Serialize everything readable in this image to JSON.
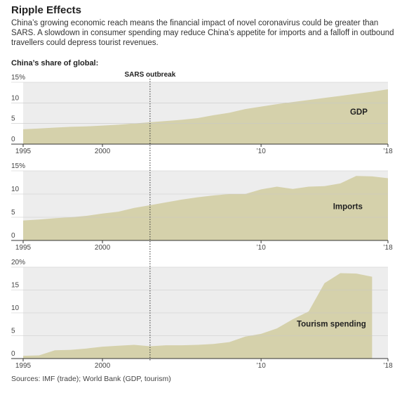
{
  "title": "Ripple Effects",
  "subtitle": "China’s growing economic reach means the financial impact of novel coronavirus could be greater than SARS. A slowdown in consumer spending may reduce China’s appetite for imports and a falloff in outbound travellers could depress tourist revenues.",
  "section_label": "China’s share of global:",
  "source": "Sources: IMF (trade); World Bank (GDP, tourism)",
  "chart_data": [
    {
      "type": "area",
      "annotation": {
        "text": "SARS outbreak",
        "x": 2003
      },
      "x": [
        1995,
        1996,
        1997,
        1998,
        1999,
        2000,
        2001,
        2002,
        2003,
        2004,
        2005,
        2006,
        2007,
        2008,
        2009,
        2010,
        2011,
        2012,
        2013,
        2014,
        2015,
        2016,
        2017,
        2018
      ],
      "series": [
        {
          "name": "GDP",
          "color": "#d5d1ab",
          "values": [
            3.6,
            3.8,
            4.0,
            4.2,
            4.3,
            4.5,
            4.7,
            5.0,
            5.3,
            5.6,
            5.9,
            6.3,
            7.0,
            7.6,
            8.5,
            9.1,
            9.7,
            10.2,
            10.7,
            11.2,
            11.7,
            12.2,
            12.7,
            13.3
          ]
        }
      ],
      "xlim": [
        1995,
        2018
      ],
      "xticks": [
        1995,
        2000,
        {
          "value": 2010,
          "label": "’10"
        },
        {
          "value": 2018,
          "label": "’18"
        }
      ],
      "ylim": [
        0,
        15
      ],
      "yticks": [
        0,
        5,
        10,
        {
          "value": 15,
          "label": "15%"
        }
      ],
      "grid": true
    },
    {
      "type": "area",
      "x": [
        1995,
        1996,
        1997,
        1998,
        1999,
        2000,
        2001,
        2002,
        2003,
        2004,
        2005,
        2006,
        2007,
        2008,
        2009,
        2010,
        2011,
        2012,
        2013,
        2014,
        2015,
        2016,
        2017,
        2018
      ],
      "series": [
        {
          "name": "Imports",
          "color": "#d5d1ab",
          "values": [
            4.3,
            4.5,
            4.8,
            5.0,
            5.3,
            5.8,
            6.2,
            7.0,
            7.6,
            8.2,
            8.8,
            9.3,
            9.7,
            10.0,
            10.0,
            11.0,
            11.6,
            11.1,
            11.6,
            11.7,
            12.3,
            13.9,
            13.8,
            13.4
          ]
        }
      ],
      "xlim": [
        1995,
        2018
      ],
      "xticks": [
        1995,
        2000,
        {
          "value": 2010,
          "label": "’10"
        },
        {
          "value": 2018,
          "label": "’18"
        }
      ],
      "ylim": [
        0,
        15
      ],
      "yticks": [
        0,
        5,
        10,
        {
          "value": 15,
          "label": "15%"
        }
      ],
      "grid": true
    },
    {
      "type": "area",
      "x": [
        1995,
        1996,
        1997,
        1998,
        1999,
        2000,
        2001,
        2002,
        2003,
        2004,
        2005,
        2006,
        2007,
        2008,
        2009,
        2010,
        2011,
        2012,
        2013,
        2014,
        2015,
        2016,
        2017,
        2018
      ],
      "series": [
        {
          "name": "Tourism spending",
          "color": "#d5d1ab",
          "values": [
            0.6,
            0.7,
            1.8,
            1.9,
            2.2,
            2.6,
            2.8,
            3.0,
            2.7,
            2.9,
            2.9,
            3.0,
            3.2,
            3.6,
            4.8,
            5.4,
            6.6,
            8.6,
            10.3,
            16.5,
            18.7,
            18.6,
            17.9,
            null
          ]
        }
      ],
      "xlim": [
        1995,
        2018
      ],
      "xticks": [
        1995,
        2000,
        {
          "value": 2010,
          "label": "’10"
        },
        {
          "value": 2018,
          "label": "’18"
        }
      ],
      "ylim": [
        0,
        20
      ],
      "yticks": [
        0,
        5,
        10,
        15,
        {
          "value": 20,
          "label": "20%"
        }
      ],
      "grid": true
    }
  ]
}
